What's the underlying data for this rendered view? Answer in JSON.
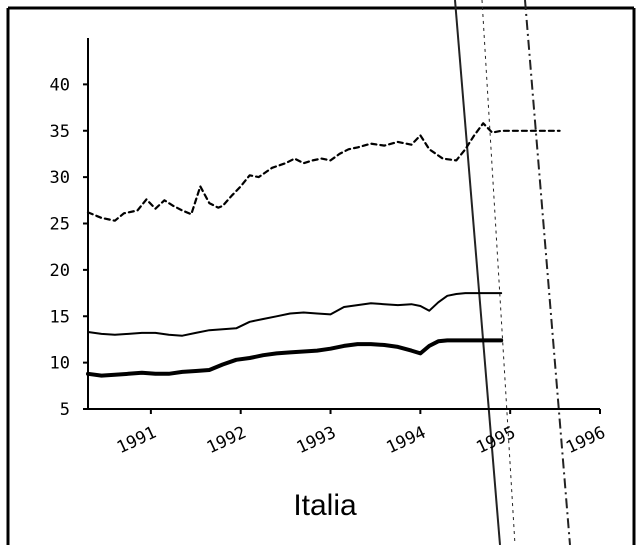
{
  "chart_data": {
    "type": "line",
    "title": "",
    "caption": "Italia",
    "xlabel": "",
    "ylabel": "",
    "xlim": [
      1990.3,
      1996.0
    ],
    "ylim": [
      5,
      45
    ],
    "yticks": [
      5,
      10,
      15,
      20,
      25,
      30,
      35,
      40
    ],
    "xticks": [
      "1991",
      "1992",
      "1993",
      "1994",
      "1995",
      "1996"
    ],
    "grid": false,
    "legend": "none",
    "series": [
      {
        "style": "dashed",
        "width": 2.2,
        "x": [
          1990.3,
          1990.45,
          1990.6,
          1990.7,
          1990.85,
          1990.95,
          1991.05,
          1991.15,
          1991.25,
          1991.35,
          1991.45,
          1991.55,
          1991.65,
          1991.75,
          1991.8,
          1991.9,
          1992.0,
          1992.1,
          1992.2,
          1992.35,
          1992.5,
          1992.6,
          1992.7,
          1992.8,
          1992.9,
          1993.0,
          1993.1,
          1993.2,
          1993.3,
          1993.45,
          1993.6,
          1993.75,
          1993.9,
          1994.0,
          1994.1,
          1994.25,
          1994.4,
          1994.5,
          1994.6,
          1994.7,
          1994.8,
          1994.9,
          1995.0,
          1995.05,
          1995.15,
          1995.25,
          1995.35,
          1995.45,
          1995.55
        ],
        "values": [
          26.2,
          25.6,
          25.3,
          26.1,
          26.4,
          27.6,
          26.6,
          27.5,
          26.9,
          26.4,
          26.0,
          29.0,
          27.2,
          26.7,
          26.9,
          28.0,
          29.0,
          30.2,
          30.0,
          31.0,
          31.5,
          32.0,
          31.5,
          31.8,
          32.0,
          31.8,
          32.5,
          33.0,
          33.2,
          33.6,
          33.4,
          33.8,
          33.5,
          34.5,
          33.0,
          32.0,
          31.8,
          33.0,
          34.5,
          35.8,
          34.8,
          35.0,
          35.0,
          35.0,
          35.0,
          35.0,
          35.0,
          35.0,
          35.0
        ]
      },
      {
        "style": "solid",
        "width": 2.0,
        "x": [
          1990.3,
          1990.45,
          1990.6,
          1990.75,
          1990.9,
          1991.05,
          1991.2,
          1991.35,
          1991.5,
          1991.65,
          1991.8,
          1991.95,
          1992.1,
          1992.25,
          1992.4,
          1992.55,
          1992.7,
          1992.85,
          1993.0,
          1993.15,
          1993.3,
          1993.45,
          1993.6,
          1993.75,
          1993.9,
          1994.0,
          1994.1,
          1994.2,
          1994.3,
          1994.4,
          1994.5,
          1994.6,
          1994.7,
          1994.8,
          1994.9
        ],
        "values": [
          13.3,
          13.1,
          13.0,
          13.1,
          13.2,
          13.2,
          13.0,
          12.9,
          13.2,
          13.5,
          13.6,
          13.7,
          14.4,
          14.7,
          15.0,
          15.3,
          15.4,
          15.3,
          15.2,
          16.0,
          16.2,
          16.4,
          16.3,
          16.2,
          16.3,
          16.1,
          15.6,
          16.5,
          17.2,
          17.4,
          17.5,
          17.5,
          17.5,
          17.5,
          17.5
        ]
      },
      {
        "style": "solid",
        "width": 4.0,
        "x": [
          1990.3,
          1990.45,
          1990.6,
          1990.75,
          1990.9,
          1991.05,
          1991.2,
          1991.35,
          1991.5,
          1991.65,
          1991.8,
          1991.95,
          1992.1,
          1992.25,
          1992.4,
          1992.55,
          1992.7,
          1992.85,
          1993.0,
          1993.15,
          1993.3,
          1993.45,
          1993.6,
          1993.75,
          1993.9,
          1994.0,
          1994.1,
          1994.2,
          1994.3,
          1994.4,
          1994.5,
          1994.6,
          1994.7,
          1994.8,
          1994.9
        ],
        "values": [
          8.8,
          8.6,
          8.7,
          8.8,
          8.9,
          8.8,
          8.8,
          9.0,
          9.1,
          9.2,
          9.8,
          10.3,
          10.5,
          10.8,
          11.0,
          11.1,
          11.2,
          11.3,
          11.5,
          11.8,
          12.0,
          12.0,
          11.9,
          11.7,
          11.3,
          11.0,
          11.8,
          12.3,
          12.4,
          12.4,
          12.4,
          12.4,
          12.4,
          12.4,
          12.4
        ]
      }
    ]
  }
}
